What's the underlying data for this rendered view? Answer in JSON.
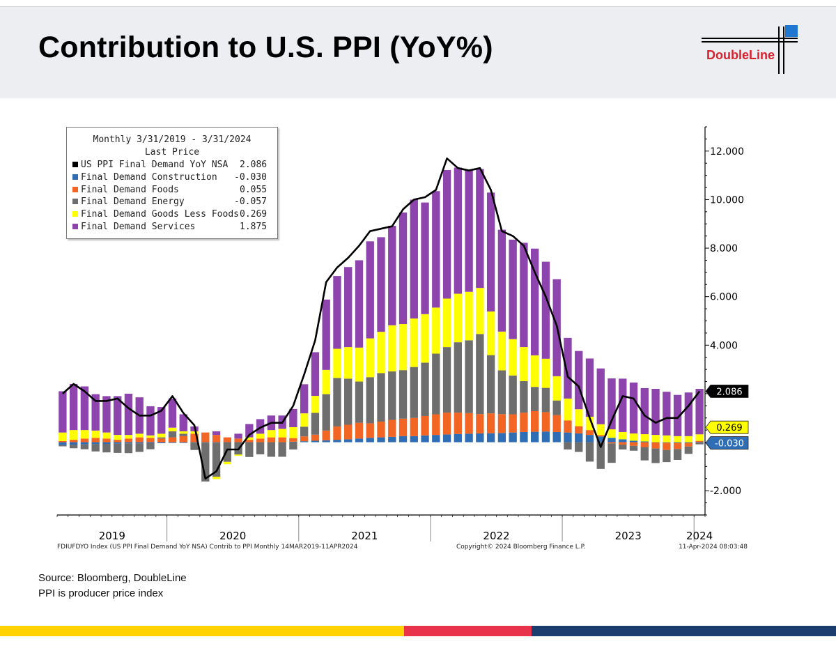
{
  "header": {
    "title": "Contribution to U.S. PPI (YoY%)",
    "logo_text": "DoubleLine"
  },
  "legend": {
    "period": "Monthly 3/31/2019 - 3/31/2024",
    "subtitle": "Last Price",
    "items": [
      {
        "label": "US PPI Final Demand YoY NSA",
        "value": "2.086",
        "color": "#000000"
      },
      {
        "label": "Final Demand Construction",
        "value": "-0.030",
        "color": "#2f6eb5"
      },
      {
        "label": "Final Demand Foods",
        "value": "0.055",
        "color": "#f26522"
      },
      {
        "label": "Final Demand Energy",
        "value": "-0.057",
        "color": "#6e6e6e"
      },
      {
        "label": "Final Demand Goods Less Foods",
        "value": "0.269",
        "color": "#ffff00"
      },
      {
        "label": "Final Demand Services",
        "value": "1.875",
        "color": "#8e44ad"
      }
    ]
  },
  "chart_data": {
    "type": "bar",
    "stacked": true,
    "frequency": "Monthly",
    "x_start": "2019-03",
    "x_end": "2024-03",
    "x_year_labels": [
      "2019",
      "2020",
      "2021",
      "2022",
      "2023",
      "2024"
    ],
    "y_ticks": [
      "12.000",
      "10.000",
      "8.000",
      "6.000",
      "4.000",
      "-2.000"
    ],
    "ylim": [
      -3,
      13
    ],
    "axis_side": "right",
    "legend_position": "top-left",
    "last_value_tags": [
      {
        "text": "2.086",
        "color": "#000000"
      },
      {
        "text": "0.269",
        "color": "#ffff00"
      },
      {
        "text": "-0.030",
        "color": "#2f6eb5"
      }
    ],
    "series": [
      {
        "name": "US PPI Final Demand YoY NSA",
        "kind": "line",
        "color": "#000000",
        "values": [
          2.0,
          2.4,
          2.1,
          1.7,
          1.7,
          1.8,
          1.4,
          1.1,
          1.1,
          1.3,
          1.9,
          1.2,
          0.7,
          -1.5,
          -1.2,
          -0.3,
          -0.3,
          0.3,
          0.6,
          0.8,
          0.8,
          1.5,
          2.8,
          4.2,
          6.6,
          7.2,
          7.6,
          8.1,
          8.7,
          8.8,
          8.9,
          9.6,
          10.0,
          10.1,
          10.4,
          11.7,
          11.3,
          11.2,
          11.3,
          10.4,
          8.7,
          8.5,
          8.1,
          7.0,
          6.0,
          4.8,
          2.7,
          2.3,
          1.0,
          -0.2,
          0.9,
          1.9,
          1.8,
          1.1,
          0.8,
          1.0,
          1.0,
          1.5,
          2.1
        ]
      },
      {
        "name": "Final Demand Construction",
        "kind": "bar",
        "color": "#2f6eb5",
        "values": [
          -0.12,
          -0.1,
          -0.09,
          -0.08,
          -0.07,
          -0.06,
          -0.05,
          -0.05,
          -0.04,
          -0.04,
          -0.03,
          -0.03,
          -0.02,
          -0.02,
          -0.02,
          -0.01,
          -0.01,
          -0.01,
          0.0,
          0.0,
          0.0,
          0.02,
          0.04,
          0.06,
          0.08,
          0.1,
          0.12,
          0.15,
          0.18,
          0.2,
          0.22,
          0.25,
          0.25,
          0.28,
          0.3,
          0.32,
          0.34,
          0.35,
          0.36,
          0.37,
          0.38,
          0.4,
          0.42,
          0.43,
          0.44,
          0.42,
          0.4,
          0.36,
          0.3,
          0.24,
          0.18,
          0.12,
          0.06,
          0.03,
          -0.01,
          -0.02,
          -0.03,
          -0.03,
          -0.03
        ]
      },
      {
        "name": "Final Demand Foods",
        "kind": "bar",
        "color": "#f26522",
        "values": [
          0.05,
          0.1,
          0.15,
          0.18,
          0.15,
          0.1,
          0.15,
          0.2,
          0.18,
          0.15,
          0.2,
          0.25,
          0.35,
          0.4,
          0.3,
          0.2,
          0.15,
          0.1,
          0.15,
          0.2,
          0.2,
          0.15,
          0.2,
          0.25,
          0.4,
          0.55,
          0.6,
          0.65,
          0.6,
          0.65,
          0.7,
          0.72,
          0.75,
          0.8,
          0.85,
          0.9,
          0.88,
          0.85,
          0.8,
          0.82,
          0.78,
          0.75,
          0.8,
          0.85,
          0.8,
          0.7,
          0.5,
          0.3,
          0.2,
          0.05,
          -0.05,
          -0.1,
          -0.15,
          -0.2,
          -0.25,
          -0.3,
          -0.25,
          -0.15,
          0.055
        ]
      },
      {
        "name": "Final Demand Energy",
        "kind": "bar",
        "color": "#6e6e6e",
        "values": [
          -0.05,
          -0.15,
          -0.2,
          -0.3,
          -0.35,
          -0.38,
          -0.4,
          -0.35,
          -0.25,
          0.05,
          0.25,
          0.1,
          -0.3,
          -1.6,
          -1.4,
          -0.8,
          -0.5,
          -0.6,
          -0.5,
          -0.6,
          -0.6,
          -0.3,
          0.4,
          0.9,
          1.5,
          2.0,
          1.9,
          1.7,
          1.9,
          2.0,
          2.0,
          2.0,
          2.1,
          2.2,
          2.5,
          2.7,
          2.9,
          3.0,
          3.3,
          2.4,
          1.8,
          1.6,
          1.3,
          1.0,
          1.0,
          0.6,
          -0.3,
          -0.4,
          -0.8,
          -1.1,
          -0.8,
          -0.2,
          -0.2,
          -0.55,
          -0.6,
          -0.5,
          -0.45,
          -0.3,
          -0.057
        ]
      },
      {
        "name": "Final Demand Goods Less Foods",
        "kind": "bar",
        "color": "#ffff00",
        "values": [
          0.35,
          0.4,
          0.35,
          0.3,
          0.25,
          0.2,
          0.15,
          0.15,
          0.1,
          0.15,
          0.15,
          0.1,
          0.1,
          0.0,
          -0.1,
          -0.1,
          -0.05,
          0.1,
          0.2,
          0.3,
          0.35,
          0.45,
          0.55,
          0.7,
          1.0,
          1.2,
          1.3,
          1.4,
          1.6,
          1.7,
          1.9,
          1.9,
          2.0,
          2.0,
          1.9,
          2.0,
          2.0,
          2.0,
          1.9,
          1.8,
          1.6,
          1.5,
          1.4,
          1.3,
          1.2,
          1.0,
          0.9,
          0.7,
          0.55,
          0.45,
          0.35,
          0.3,
          0.3,
          0.3,
          0.3,
          0.28,
          0.25,
          0.25,
          0.269
        ]
      },
      {
        "name": "Final Demand Services",
        "kind": "bar",
        "color": "#8e44ad",
        "values": [
          1.7,
          1.9,
          1.8,
          1.5,
          1.5,
          1.6,
          1.7,
          1.5,
          1.2,
          1.1,
          1.2,
          0.7,
          0.2,
          0.0,
          0.15,
          0.0,
          0.2,
          0.55,
          0.6,
          0.6,
          0.55,
          0.75,
          1.2,
          1.8,
          2.9,
          3.0,
          3.3,
          3.6,
          4.0,
          3.9,
          4.1,
          4.6,
          4.9,
          4.6,
          4.8,
          5.3,
          5.2,
          5.0,
          4.9,
          4.9,
          4.2,
          4.1,
          4.3,
          4.4,
          4.0,
          4.0,
          2.5,
          2.4,
          2.4,
          2.3,
          2.1,
          2.2,
          2.1,
          1.9,
          1.9,
          1.8,
          1.7,
          1.8,
          1.875
        ]
      }
    ]
  },
  "chart_footer": {
    "left": "FDIUFDYO Index (US PPI Final Demand YoY NSA) Contrib to PPI  Monthly 14MAR2019-11APR2024",
    "center": "Copyright© 2024 Bloomberg Finance L.P.",
    "right": "11-Apr-2024 08:03:48"
  },
  "source": {
    "line1": "Source: Bloomberg, DoubleLine",
    "line2": "PPI is producer price index"
  },
  "colors": {
    "stripe_yellow": "#ffd200",
    "stripe_red": "#e8334a",
    "stripe_navy": "#1c3e6e"
  }
}
